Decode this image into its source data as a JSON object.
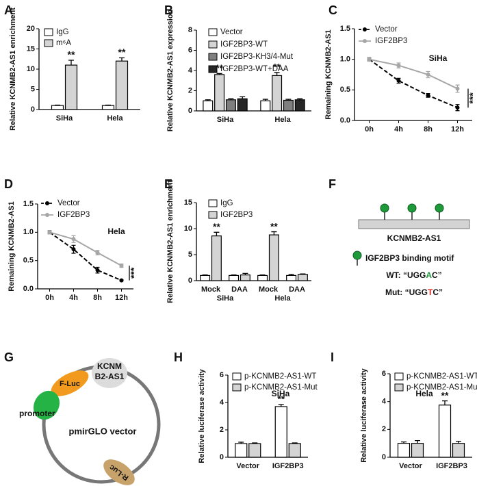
{
  "chart_data": [
    {
      "panel": "A",
      "type": "bar",
      "ylabel": "Relative KCNMB2-AS1 enrichment",
      "categories": [
        "SiHa",
        "Hela"
      ],
      "series": [
        {
          "name": "IgG",
          "color": "#ffffff",
          "values": [
            1,
            1
          ],
          "errors": [
            0.1,
            0.1
          ]
        },
        {
          "name": "m⁶A",
          "color": "#d4d4d4",
          "values": [
            11,
            12
          ],
          "errors": [
            1.2,
            0.8
          ],
          "significance": [
            "**",
            "**"
          ]
        }
      ],
      "ylim": [
        0,
        20
      ],
      "yticks": [
        0,
        5,
        10,
        15,
        20
      ]
    },
    {
      "panel": "B",
      "type": "bar",
      "ylabel": "Relative KCNMB2-AS1 expression",
      "categories": [
        "SiHa",
        "Hela"
      ],
      "series": [
        {
          "name": "Vector",
          "color": "#ffffff",
          "values": [
            1,
            1
          ],
          "errors": [
            0.1,
            0.15
          ]
        },
        {
          "name": "IGF2BP3-WT",
          "color": "#d4d4d4",
          "values": [
            3.6,
            3.5
          ],
          "errors": [
            0.1,
            0.3
          ],
          "significance": [
            "**",
            "**"
          ]
        },
        {
          "name": "IGF2BP3-KH3/4-Mut",
          "color": "#7f7f7f",
          "values": [
            1.1,
            1.05
          ],
          "errors": [
            0.1,
            0.1
          ]
        },
        {
          "name": "IGF2BP3-WT+DAA",
          "color": "#262626",
          "values": [
            1.2,
            1.1
          ],
          "errors": [
            0.2,
            0.1
          ]
        }
      ],
      "ylim": [
        0,
        8
      ],
      "yticks": [
        0,
        2,
        4,
        6,
        8
      ]
    },
    {
      "panel": "C",
      "type": "line",
      "ylabel": "Remaining KCNMB2-AS1",
      "categories": [
        "0h",
        "4h",
        "8h",
        "12h"
      ],
      "annotation": "SiHa",
      "significance": "***",
      "series": [
        {
          "name": "Vector",
          "color": "#000000",
          "line_style": "dashed",
          "values": [
            1.0,
            0.65,
            0.41,
            0.21
          ],
          "errors": [
            0.03,
            0.04,
            0.03,
            0.05
          ]
        },
        {
          "name": "IGF2BP3",
          "color": "#a6a6a6",
          "line_style": "solid",
          "values": [
            1.0,
            0.9,
            0.75,
            0.52
          ],
          "errors": [
            0.03,
            0.04,
            0.05,
            0.06
          ]
        }
      ],
      "ylim": [
        0,
        1.5
      ],
      "yticks": [
        {
          "value": 0,
          "label": "0.0"
        },
        {
          "value": 0.5,
          "label": "0.5"
        },
        {
          "value": 1,
          "label": "1.0"
        },
        {
          "value": 1.5,
          "label": "1.5"
        }
      ]
    },
    {
      "panel": "D",
      "type": "line",
      "ylabel": "Remaining KCNMB2-AS1",
      "categories": [
        "0h",
        "4h",
        "8h",
        "12h"
      ],
      "annotation": "Hela",
      "significance": "***",
      "series": [
        {
          "name": "Vector",
          "color": "#000000",
          "line_style": "dashed",
          "values": [
            1.0,
            0.7,
            0.33,
            0.15
          ],
          "errors": [
            0.03,
            0.07,
            0.05,
            0.01
          ]
        },
        {
          "name": "IGF2BP3",
          "color": "#a6a6a6",
          "line_style": "solid",
          "values": [
            1.0,
            0.88,
            0.64,
            0.41
          ],
          "errors": [
            0.03,
            0.06,
            0.04,
            0.03
          ]
        }
      ],
      "ylim": [
        0,
        1.5
      ],
      "yticks": [
        {
          "value": 0,
          "label": "0.0"
        },
        {
          "value": 0.5,
          "label": "0.5"
        },
        {
          "value": 1,
          "label": "1.0"
        },
        {
          "value": 1.5,
          "label": "1.5"
        }
      ]
    },
    {
      "panel": "E",
      "type": "bar",
      "ylabel": "Relative KCNMB2-AS1 enrichment",
      "categories": [
        "Mock",
        "DAA",
        "Mock",
        "DAA"
      ],
      "group_labels": [
        "SiHa",
        "Hela"
      ],
      "series": [
        {
          "name": "IgG",
          "color": "#ffffff",
          "values": [
            1,
            1,
            1,
            1
          ],
          "errors": [
            0.1,
            0.1,
            0.1,
            0.2
          ]
        },
        {
          "name": "IGF2BP3",
          "color": "#d4d4d4",
          "values": [
            8.6,
            1.1,
            8.8,
            1.2
          ],
          "errors": [
            0.7,
            0.3,
            0.6,
            0.1
          ],
          "significance": [
            "**",
            null,
            "**",
            null
          ]
        }
      ],
      "ylim": [
        0,
        15
      ],
      "yticks": [
        0,
        5,
        10,
        15
      ]
    },
    {
      "panel": "H",
      "type": "bar",
      "ylabel": "Relative luciferase activity",
      "categories": [
        "Vector",
        "IGF2BP3"
      ],
      "annotation": "SiHa",
      "series": [
        {
          "name": "p-KCNMB2-AS1-WT",
          "color": "#ffffff",
          "values": [
            1,
            3.7
          ],
          "errors": [
            0.1,
            0.15
          ],
          "significance": [
            null,
            "**"
          ]
        },
        {
          "name": "p-KCNMB2-AS1-Mut",
          "color": "#d4d4d4",
          "values": [
            1,
            1
          ],
          "errors": [
            0.05,
            0.05
          ]
        }
      ],
      "ylim": [
        0,
        6
      ],
      "yticks": [
        0,
        2,
        4,
        6
      ]
    },
    {
      "panel": "I",
      "type": "bar",
      "ylabel": "Relative luciferase activity",
      "categories": [
        "Vector",
        "IGF2BP3"
      ],
      "annotation": "Hela",
      "series": [
        {
          "name": "p-KCNMB2-AS1-WT",
          "color": "#ffffff",
          "values": [
            1,
            3.75
          ],
          "errors": [
            0.1,
            0.3
          ],
          "significance": [
            null,
            "**"
          ]
        },
        {
          "name": "p-KCNMB2-AS1-Mut",
          "color": "#d4d4d4",
          "values": [
            1,
            1
          ],
          "errors": [
            0.2,
            0.15
          ]
        }
      ],
      "ylim": [
        0,
        6
      ],
      "yticks": [
        0,
        2,
        4,
        6
      ]
    }
  ],
  "panel_f": {
    "panel": "F",
    "rna": "KCNMB2-AS1",
    "motif_legend": "IGF2BP3 binding motif",
    "wt": {
      "prefix": "WT: “UGG",
      "highlight": "A",
      "suffix": "C”"
    },
    "mut": {
      "prefix": "Mut: “UGG",
      "highlight": "T",
      "suffix": "C”"
    }
  },
  "panel_g": {
    "panel": "G",
    "insert": [
      "KCNM",
      "B2-AS1"
    ],
    "firefly": "F-Luc",
    "promoter": "promoter",
    "vector": "pmirGLO vector",
    "renilla": "R-Luc"
  }
}
